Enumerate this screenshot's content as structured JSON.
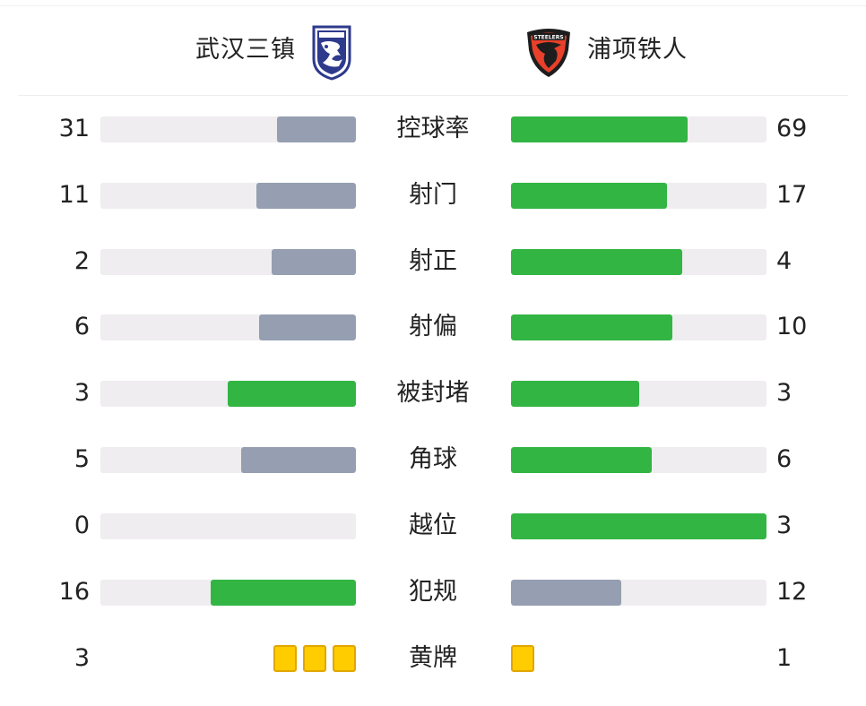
{
  "teams": {
    "home": {
      "name": "武汉三镇",
      "logo_icon": "wuhan-three-towns-crest-icon"
    },
    "away": {
      "name": "浦项铁人",
      "logo_icon": "pohang-steelers-crest-icon",
      "logo_text": "STEELERS"
    }
  },
  "colors": {
    "winner": "#33b544",
    "loser": "#959fb1",
    "track": "#efedef",
    "yellow_card": "#ffcc00"
  },
  "stats": [
    {
      "label": "控球率",
      "home": "31",
      "away": "69",
      "home_share": 0.31,
      "away_share": 0.69,
      "home_color": "#959fb1",
      "away_color": "#33b544"
    },
    {
      "label": "射门",
      "home": "11",
      "away": "17",
      "home_share": 0.39,
      "away_share": 0.61,
      "home_color": "#959fb1",
      "away_color": "#33b544"
    },
    {
      "label": "射正",
      "home": "2",
      "away": "4",
      "home_share": 0.33,
      "away_share": 0.67,
      "home_color": "#959fb1",
      "away_color": "#33b544"
    },
    {
      "label": "射偏",
      "home": "6",
      "away": "10",
      "home_share": 0.38,
      "away_share": 0.63,
      "home_color": "#959fb1",
      "away_color": "#33b544"
    },
    {
      "label": "被封堵",
      "home": "3",
      "away": "3",
      "home_share": 0.5,
      "away_share": 0.5,
      "home_color": "#33b544",
      "away_color": "#33b544"
    },
    {
      "label": "角球",
      "home": "5",
      "away": "6",
      "home_share": 0.45,
      "away_share": 0.55,
      "home_color": "#959fb1",
      "away_color": "#33b544"
    },
    {
      "label": "越位",
      "home": "0",
      "away": "3",
      "home_share": 0.0,
      "away_share": 1.0,
      "home_color": "#959fb1",
      "away_color": "#33b544"
    },
    {
      "label": "犯规",
      "home": "16",
      "away": "12",
      "home_share": 0.57,
      "away_share": 0.43,
      "home_color": "#33b544",
      "away_color": "#959fb1"
    }
  ],
  "yellow_cards": {
    "label": "黄牌",
    "home": "3",
    "away": "1",
    "home_count": 3,
    "away_count": 1
  }
}
